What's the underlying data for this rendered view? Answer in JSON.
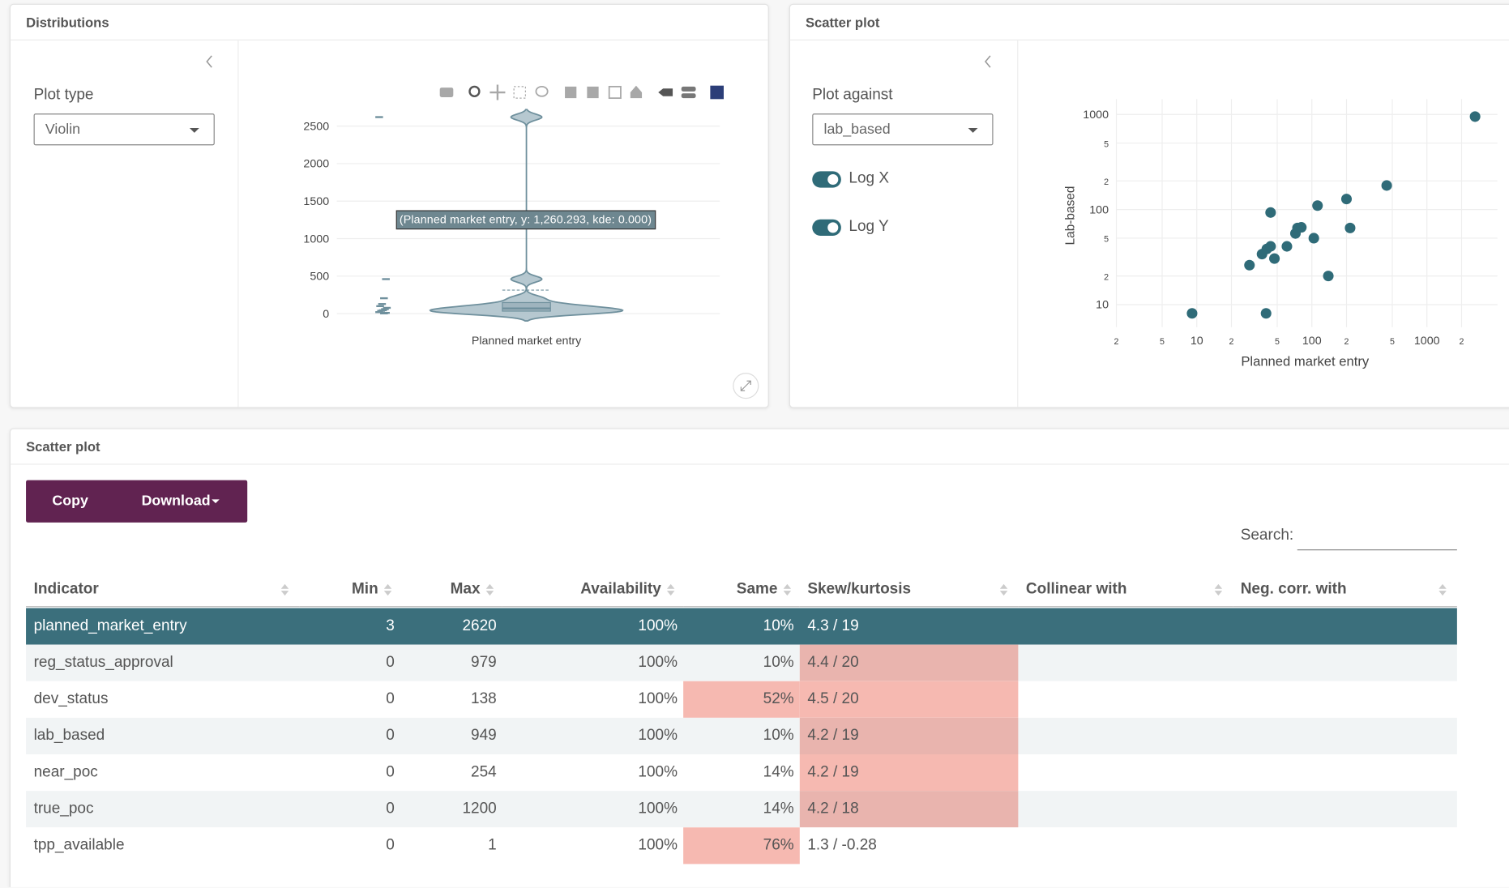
{
  "distributions": {
    "title": "Distributions",
    "plot_type_label": "Plot type",
    "plot_type": "Violin",
    "chart_data": {
      "type": "violin",
      "x_label": "Planned market entry",
      "tooltip": "(Planned market entry, y: 1,260.293, kde: 0.000)",
      "values": [
        2620,
        460,
        205,
        128,
        100,
        77,
        60,
        45,
        38,
        20,
        10,
        3
      ],
      "ylim": [
        -180,
        2860
      ],
      "yticks": [
        0,
        500,
        1000,
        1500,
        2000,
        2500
      ],
      "color": "#a9bec8",
      "grid": true
    }
  },
  "scatter": {
    "title": "Scatter plot",
    "against_label": "Plot against",
    "against": "lab_based",
    "toggles": [
      "Log X",
      "Log Y"
    ],
    "chart_data": {
      "type": "scatter",
      "x_label": "Planned market entry",
      "y_label": "Lab-based",
      "log_x": true,
      "log_y": true,
      "grid": true,
      "color": "#2f6b78",
      "x": [
        9.1,
        40,
        28.7,
        36.9,
        40.6,
        43.8,
        43.8,
        47.3,
        60.7,
        72,
        75,
        81,
        104,
        112,
        139,
        200,
        215,
        447,
        2620
      ],
      "values": [
        8.1,
        8.1,
        26,
        34,
        38.5,
        41,
        93,
        30.5,
        41,
        56,
        64,
        65,
        50,
        110,
        20,
        129,
        64,
        179,
        949
      ],
      "xlim": [
        2,
        4100
      ],
      "ylim": [
        5.8,
        1450
      ],
      "xticks": [
        2,
        5,
        10,
        {
          "value": 20,
          "label": "2"
        },
        {
          "value": 50,
          "label": "5"
        },
        100,
        {
          "value": 200,
          "label": "2"
        },
        {
          "value": 500,
          "label": "5"
        },
        1000,
        {
          "value": 2000,
          "label": "2"
        }
      ],
      "yticks": [
        10,
        {
          "value": 20,
          "label": "2"
        },
        {
          "value": 50,
          "label": "5"
        },
        100,
        {
          "value": 200,
          "label": "2"
        },
        {
          "value": 500,
          "label": "5"
        },
        1000
      ]
    }
  },
  "table_panel": {
    "title": "Scatter plot",
    "buttons": [
      "Copy",
      "Download"
    ],
    "search_label": "Search:",
    "table": {
      "columns": [
        "Indicator",
        "Min",
        "Max",
        "Availability",
        "Same",
        "Skew/kurtosis",
        "Collinear with",
        "Neg. corr. with"
      ],
      "rows": [
        [
          "planned_market_entry",
          "3",
          "2620",
          "100%",
          "10%",
          "4.3 / 19"
        ],
        [
          "reg_status_approval",
          "0",
          "979",
          "100%",
          "10%",
          "4.4 / 20"
        ],
        [
          "dev_status",
          "0",
          "138",
          "100%",
          "52%",
          "4.5 / 20"
        ],
        [
          "lab_based",
          "0",
          "949",
          "100%",
          "10%",
          "4.2 / 19"
        ],
        [
          "near_poc",
          "0",
          "254",
          "100%",
          "14%",
          "4.2 / 19"
        ],
        [
          "true_poc",
          "0",
          "1200",
          "100%",
          "14%",
          "4.2 / 18"
        ],
        [
          "tpp_available",
          "0",
          "1",
          "100%",
          "76%",
          "1.3 / -0.28"
        ]
      ]
    }
  }
}
